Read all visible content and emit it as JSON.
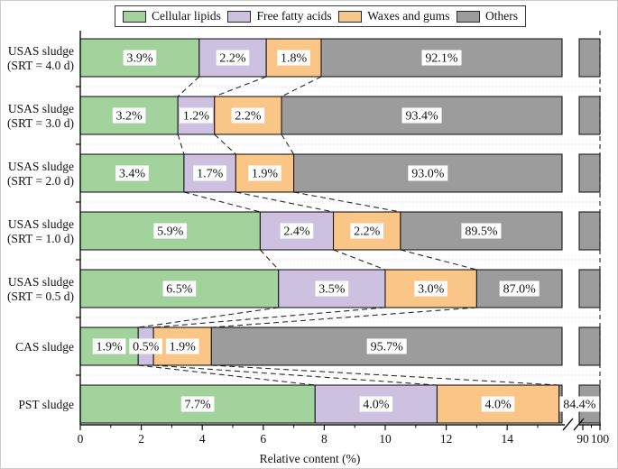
{
  "figure": {
    "legend": [
      {
        "label": "Cellular lipids",
        "color": "#a3d39c"
      },
      {
        "label": "Free fatty acids",
        "color": "#cdc1e0"
      },
      {
        "label": "Waxes and gums",
        "color": "#fac687"
      },
      {
        "label": "Others",
        "color": "#9c9c9c"
      }
    ],
    "border_color": "#1a1a1a"
  },
  "chart_data": {
    "type": "bar",
    "orientation": "horizontal-stacked",
    "title": "",
    "xlabel": "Relative content (%)",
    "ylabel": "",
    "categories": [
      [
        "USAS sludge",
        "(SRT = 4.0 d)"
      ],
      [
        "USAS sludge",
        "(SRT = 3.0 d)"
      ],
      [
        "USAS sludge",
        "(SRT = 2.0 d)"
      ],
      [
        "USAS sludge",
        "(SRT = 1.0 d)"
      ],
      [
        "USAS sludge",
        "(SRT = 0.5 d)"
      ],
      [
        "CAS sludge"
      ],
      [
        "PST sludge"
      ]
    ],
    "series": [
      {
        "name": "Cellular lipids",
        "color": "#a3d39c",
        "values": [
          3.9,
          3.2,
          3.4,
          5.9,
          6.5,
          1.9,
          7.7
        ]
      },
      {
        "name": "Free fatty acids",
        "color": "#cdc1e0",
        "values": [
          2.2,
          1.2,
          1.7,
          2.4,
          3.5,
          0.5,
          4.0
        ]
      },
      {
        "name": "Waxes and gums",
        "color": "#fac687",
        "values": [
          1.8,
          2.2,
          1.9,
          2.2,
          3.0,
          1.9,
          4.0
        ]
      },
      {
        "name": "Others",
        "color": "#9c9c9c",
        "values": [
          92.1,
          93.4,
          93.0,
          89.5,
          87.0,
          95.7,
          84.4
        ]
      }
    ],
    "data_label_format": "percent",
    "x_axis": {
      "ticks_major": [
        0,
        2,
        4,
        6,
        8,
        10,
        12,
        14
      ],
      "ticks_minor": [
        1,
        3,
        5,
        7,
        9,
        11,
        13,
        15
      ],
      "axis_break": true,
      "ticks_after_break": [
        90,
        100
      ],
      "minor_after_break": [
        95
      ],
      "range_low": [
        0,
        16
      ],
      "range_high": [
        88,
        100
      ]
    },
    "grid": "dotted-horizontal-between-rows",
    "legend_position": "top",
    "connector_lines": "dashed-between-stack-boundaries",
    "right_spine": "dashed"
  }
}
